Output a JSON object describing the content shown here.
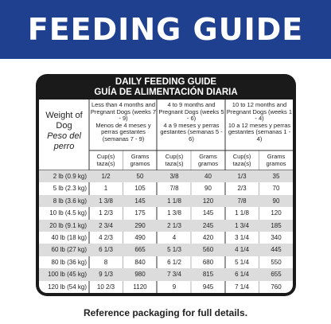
{
  "banner": {
    "title": "FEEDING GUIDE"
  },
  "table": {
    "heading_en": "DAILY FEEDING GUIDE",
    "heading_es": "GUÍA DE ALIMENTACIÓN DIARIA",
    "weight_header_en": "Weight of Dog",
    "weight_header_es": "Peso del perro",
    "groups": [
      {
        "en": "Less than 4 months and Pregnant Dogs (weeks 7 - 9)",
        "es": "Menos de 4 meses y perras gestantes (semanas 7 - 9)"
      },
      {
        "en": "4 to 9 months and Pregnant Dogs (weeks 5 - 6)",
        "es": "4 a 9 meses y perras gestantes (semanas 5 - 6)"
      },
      {
        "en": "10 to 12 months and Pregnant Dogs (weeks 1 - 4)",
        "es": "10 a 12 meses y perras gestantes (semanas 1 - 4)"
      }
    ],
    "sub_headers": [
      {
        "cup": "Cup(s)",
        "cup_es": "taza(s)",
        "gram": "Grams",
        "gram_es": "gramos"
      },
      {
        "cup": "Cup(s)",
        "cup_es": "taza(s)",
        "gram": "Grams",
        "gram_es": "gramos"
      },
      {
        "cup": "Cup(s)",
        "cup_es": "taza(s)",
        "gram": "Grams",
        "gram_es": "gramos"
      }
    ],
    "rows": [
      {
        "weight": "2 lb (0.9 kg)",
        "c1": "1/2",
        "g1": "50",
        "c2": "3/8",
        "g2": "40",
        "c3": "1/3",
        "g3": "35"
      },
      {
        "weight": "5 lb (2.3 kg)",
        "c1": "1",
        "g1": "105",
        "c2": "7/8",
        "g2": "90",
        "c3": "2/3",
        "g3": "70"
      },
      {
        "weight": "8 lb (3.6 kg)",
        "c1": "1 3/8",
        "g1": "145",
        "c2": "1 1/8",
        "g2": "120",
        "c3": "7/8",
        "g3": "90"
      },
      {
        "weight": "10 lb (4.5 kg)",
        "c1": "1 2/3",
        "g1": "175",
        "c2": "1 3/8",
        "g2": "145",
        "c3": "1 1/8",
        "g3": "120"
      },
      {
        "weight": "20 lb (9.1 kg)",
        "c1": "2 3/4",
        "g1": "290",
        "c2": "2 1/3",
        "g2": "245",
        "c3": "1 3/4",
        "g3": "185"
      },
      {
        "weight": "40 lb (18 kg)",
        "c1": "4 2/3",
        "g1": "490",
        "c2": "4",
        "g2": "420",
        "c3": "3 1/4",
        "g3": "340"
      },
      {
        "weight": "60 lb (27 kg)",
        "c1": "6 1/3",
        "g1": "665",
        "c2": "5 1/3",
        "g2": "560",
        "c3": "4 1/4",
        "g3": "445"
      },
      {
        "weight": "80 lb (36 kg)",
        "c1": "8",
        "g1": "840",
        "c2": "6 1/2",
        "g2": "680",
        "c3": "5 1/4",
        "g3": "550"
      },
      {
        "weight": "100 lb (45 kg)",
        "c1": "9 1/3",
        "g1": "980",
        "c2": "7 3/4",
        "g2": "815",
        "c3": "6 1/4",
        "g3": "655"
      },
      {
        "weight": "120 lb (54 kg)",
        "c1": "10 2/3",
        "g1": "1120",
        "c2": "9",
        "g2": "945",
        "c3": "7 1/4",
        "g3": "760"
      }
    ]
  },
  "footer": {
    "note": "Reference packaging for full details."
  },
  "colors": {
    "banner": "#1f3f8f",
    "table_frame": "#1a1a1a",
    "row_stripe": "#dcdcdc"
  }
}
